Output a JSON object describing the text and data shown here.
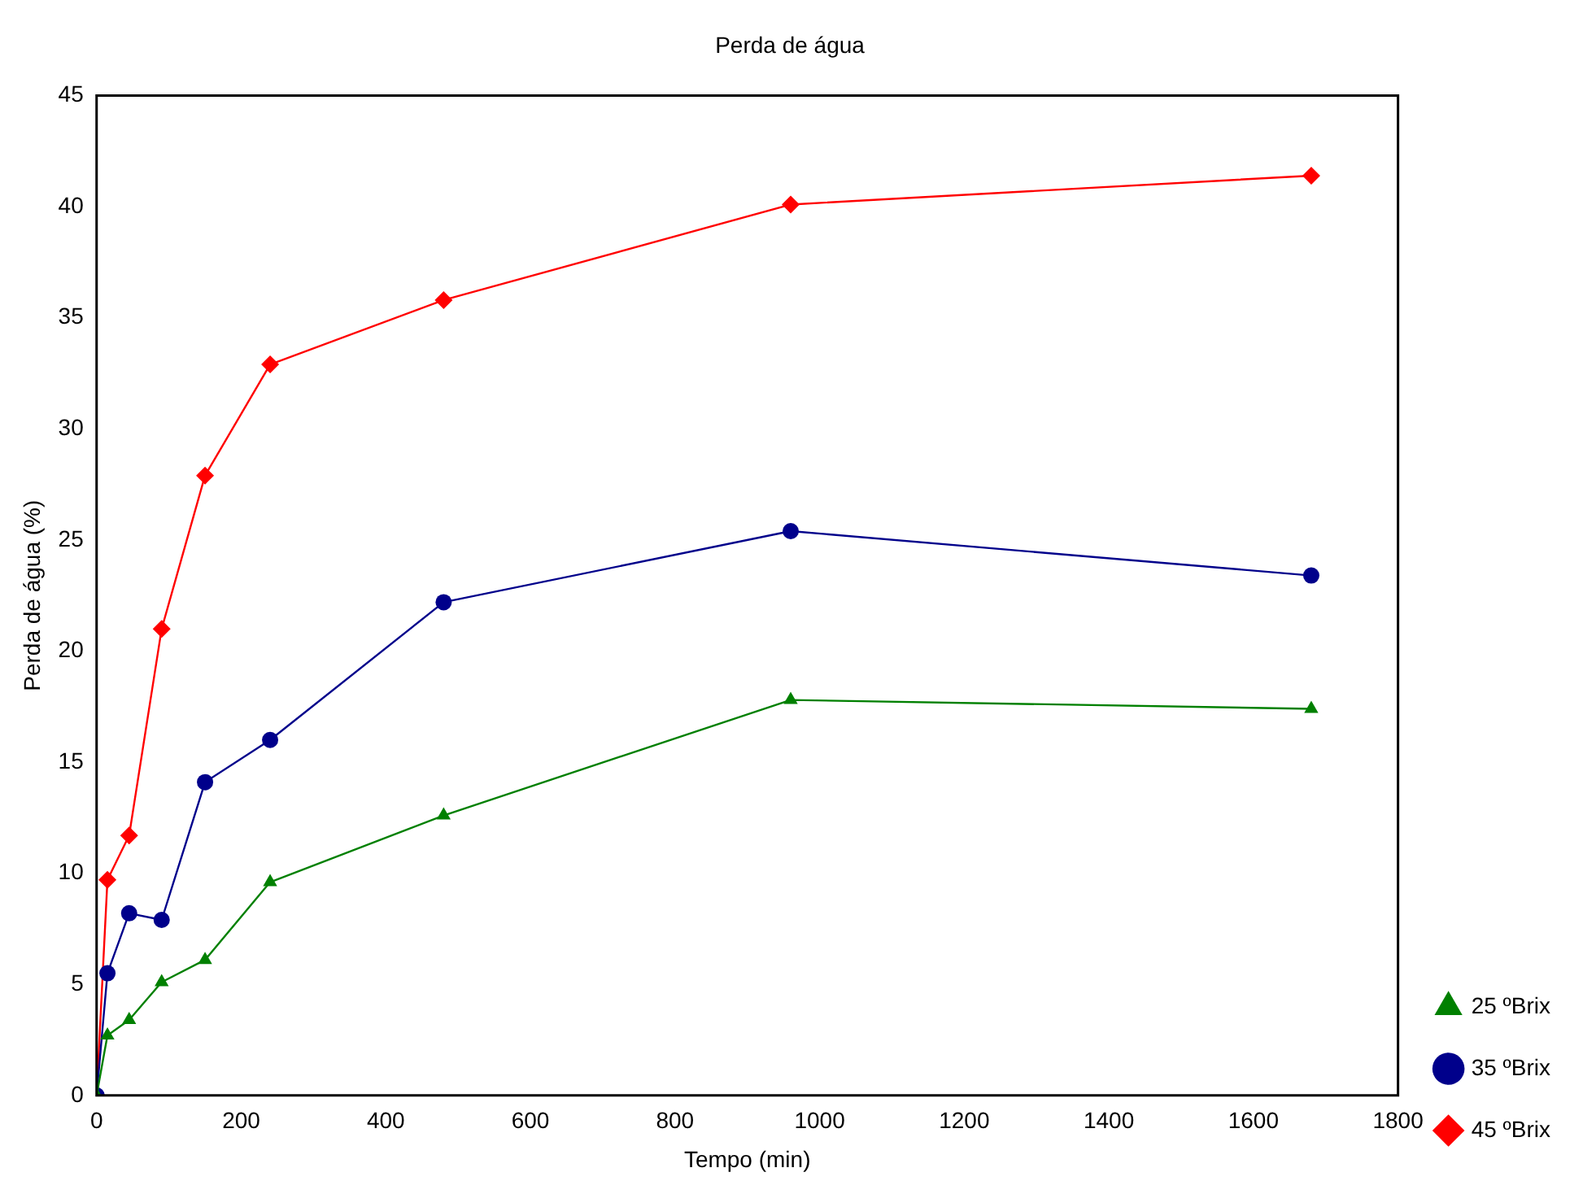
{
  "chart_data": {
    "type": "line",
    "title": "Perda de água",
    "xlabel": "Tempo (min)",
    "ylabel": "Perda de água (%)",
    "x": [
      0,
      15,
      45,
      90,
      150,
      240,
      480,
      960,
      1680
    ],
    "series": [
      {
        "name": "25 ºBrix",
        "color": "#008000",
        "marker": "triangle",
        "values": [
          0,
          2.7,
          3.4,
          5.1,
          6.1,
          9.6,
          12.6,
          17.8,
          17.4
        ]
      },
      {
        "name": "35 ºBrix",
        "color": "#00008b",
        "marker": "circle",
        "values": [
          0,
          5.5,
          8.2,
          7.9,
          14.1,
          16.0,
          22.2,
          25.4,
          23.4
        ]
      },
      {
        "name": "45 ºBrix",
        "color": "#ff0000",
        "marker": "diamond",
        "values": [
          0,
          9.7,
          11.7,
          21.0,
          27.9,
          32.9,
          35.8,
          40.1,
          41.4
        ]
      }
    ],
    "xlim": [
      0,
      1800
    ],
    "xticks": [
      0,
      200,
      400,
      600,
      800,
      1000,
      1200,
      1400,
      1600,
      1800
    ],
    "ylim": [
      0,
      45
    ],
    "yticks": [
      0,
      5,
      10,
      15,
      20,
      25,
      30,
      35,
      40,
      45
    ],
    "grid": false,
    "legend": "bottom right",
    "line_style": "solid"
  }
}
